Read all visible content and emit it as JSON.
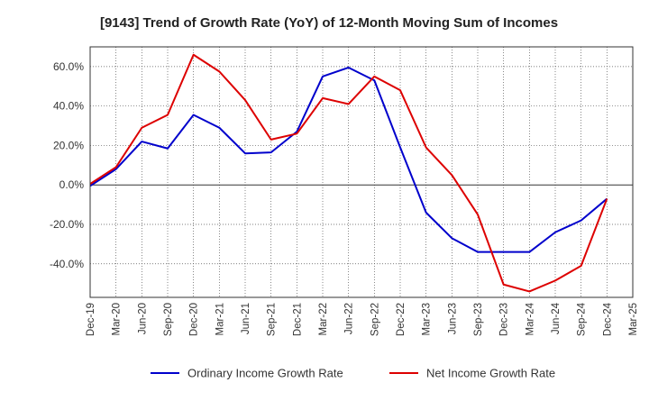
{
  "chart_data": {
    "type": "line",
    "title": "[9143]  Trend of Growth Rate (YoY) of 12-Month Moving Sum of Incomes",
    "x": [
      "Dec-19",
      "Mar-20",
      "Jun-20",
      "Sep-20",
      "Dec-20",
      "Mar-21",
      "Jun-21",
      "Sep-21",
      "Dec-21",
      "Mar-22",
      "Jun-22",
      "Sep-22",
      "Dec-22",
      "Mar-23",
      "Jun-23",
      "Sep-23",
      "Dec-23",
      "Mar-24",
      "Jun-24",
      "Sep-24",
      "Dec-24",
      "Mar-25"
    ],
    "ylim": [
      -57,
      70
    ],
    "yticks": [
      60,
      40,
      20,
      0,
      -20,
      -40
    ],
    "ytick_labels": [
      "60.0%",
      "40.0%",
      "20.0%",
      "0.0%",
      "-20.0%",
      "-40.0%"
    ],
    "grid": true,
    "legend_position": "bottom",
    "series": [
      {
        "name": "Ordinary Income Growth Rate",
        "color": "#0000cc",
        "values": [
          -0.5,
          8,
          22,
          18.5,
          35.5,
          29,
          16,
          16.5,
          27,
          55,
          59.5,
          53,
          19,
          -14,
          -27,
          -34,
          -34,
          -34,
          -24,
          -18,
          -7,
          null
        ]
      },
      {
        "name": "Net Income Growth Rate",
        "color": "#dd0000",
        "values": [
          0.5,
          9,
          29,
          35.5,
          66,
          57.5,
          43,
          23,
          26,
          44,
          41,
          55,
          48,
          19,
          5,
          -15,
          -50.5,
          -54,
          -48.5,
          -41,
          -7,
          null
        ]
      }
    ]
  }
}
